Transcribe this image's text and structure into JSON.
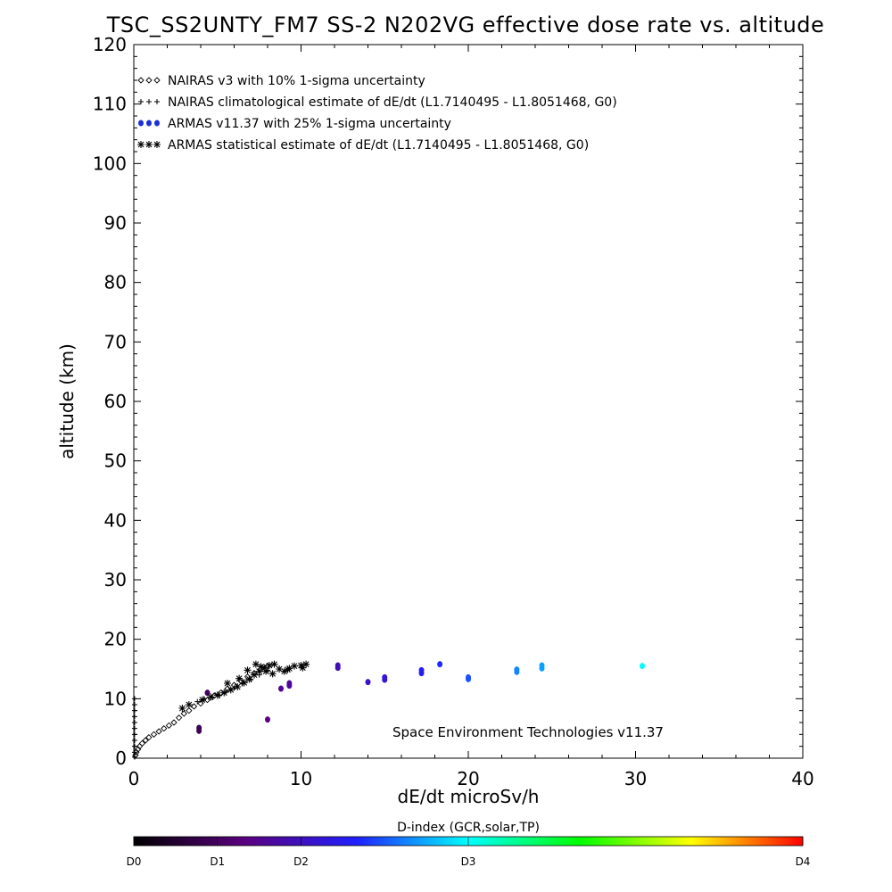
{
  "chart_data": {
    "type": "scatter",
    "title": "TSC_SS2UNTY_FM7 SS-2 N202VG effective dose rate vs. altitude",
    "xlabel": "dE/dt microSv/h",
    "ylabel": "altitude (km)",
    "xlim": [
      0,
      40
    ],
    "ylim": [
      0,
      120
    ],
    "x_ticks": [
      "0",
      "10",
      "20",
      "30",
      "40"
    ],
    "y_ticks": [
      "0",
      "10",
      "20",
      "30",
      "40",
      "50",
      "60",
      "70",
      "80",
      "90",
      "100",
      "110",
      "120"
    ],
    "legend_position": "top-left",
    "legend": [
      {
        "symbol": "◇◇◇",
        "label": "NAIRAS v3 with 10% 1-sigma uncertainty"
      },
      {
        "symbol": "+++",
        "label": "NAIRAS climatological estimate of dE/dt (L1.7140495 - L1.8051468, G0)"
      },
      {
        "symbol": "●●●",
        "label": "ARMAS v11.37 with 25% 1-sigma uncertainty",
        "color": "#1a2fd6"
      },
      {
        "symbol": "✱✱✱",
        "label": "ARMAS statistical estimate of dE/dt (L1.7140495 - L1.8051468, G0)"
      }
    ],
    "annotation": "Space Environment Technologies v11.37",
    "colorbar": {
      "title": "D-index (GCR,solar,TP)",
      "ticks": [
        {
          "label": "D0",
          "value": 0
        },
        {
          "label": "D1",
          "value": 0.125
        },
        {
          "label": "D2",
          "value": 0.25
        },
        {
          "label": "D3",
          "value": 0.5
        },
        {
          "label": "D4",
          "value": 1.0
        }
      ],
      "stops": [
        "#000000",
        "#5a0080",
        "#2020ff",
        "#00ffff",
        "#00ff00",
        "#ffff00",
        "#ff0000"
      ]
    },
    "series": [
      {
        "name": "NAIRAS v3 with 10% 1-sigma uncertainty",
        "marker": "diamond",
        "color": "#000000",
        "points": [
          [
            0.1,
            0.5
          ],
          [
            0.15,
            1.0
          ],
          [
            0.25,
            1.5
          ],
          [
            0.35,
            2.0
          ],
          [
            0.5,
            2.5
          ],
          [
            0.7,
            3.0
          ],
          [
            0.9,
            3.5
          ],
          [
            1.2,
            4.0
          ],
          [
            1.5,
            4.5
          ],
          [
            1.8,
            5.0
          ],
          [
            2.1,
            5.5
          ],
          [
            2.4,
            6.0
          ],
          [
            2.7,
            6.8
          ],
          [
            3.0,
            7.5
          ],
          [
            3.3,
            8.0
          ],
          [
            3.6,
            8.7
          ],
          [
            4.0,
            9.2
          ],
          [
            4.4,
            9.8
          ],
          [
            4.8,
            10.5
          ],
          [
            5.2,
            11.0
          ],
          [
            5.6,
            11.7
          ],
          [
            6.0,
            12.3
          ],
          [
            6.4,
            13.0
          ],
          [
            6.8,
            13.7
          ],
          [
            7.2,
            14.3
          ],
          [
            7.6,
            15.0
          ],
          [
            8.0,
            15.5
          ]
        ]
      },
      {
        "name": "NAIRAS climatological estimate of dE/dt (L1.7140495 - L1.8051468, G0)",
        "marker": "plus",
        "color": "#000000",
        "points": [
          [
            0.05,
            0.2
          ],
          [
            0.05,
            1.0
          ],
          [
            0.05,
            2.0
          ],
          [
            0.05,
            3.0
          ],
          [
            0.05,
            4.0
          ],
          [
            0.05,
            5.0
          ],
          [
            0.05,
            6.0
          ],
          [
            0.05,
            7.0
          ],
          [
            0.05,
            8.0
          ],
          [
            0.05,
            9.0
          ],
          [
            0.05,
            10.0
          ],
          [
            3.8,
            9.5
          ],
          [
            4.2,
            10.0
          ],
          [
            4.7,
            10.2
          ],
          [
            5.1,
            10.5
          ],
          [
            5.5,
            11.2
          ],
          [
            6.0,
            11.8
          ],
          [
            6.5,
            12.5
          ],
          [
            7.0,
            13.2
          ],
          [
            7.5,
            14.0
          ],
          [
            8.0,
            14.8
          ]
        ]
      },
      {
        "name": "ARMAS v11.37 with 25% 1-sigma uncertainty",
        "marker": "circle",
        "points": [
          [
            3.9,
            4.6,
            0.11
          ],
          [
            3.9,
            5.1,
            0.11
          ],
          [
            4.4,
            11.0,
            0.12
          ],
          [
            8.0,
            6.5,
            0.17
          ],
          [
            8.8,
            11.7,
            0.19
          ],
          [
            9.3,
            12.2,
            0.2
          ],
          [
            9.3,
            12.6,
            0.2
          ],
          [
            12.2,
            15.2,
            0.24
          ],
          [
            12.2,
            15.6,
            0.24
          ],
          [
            14.0,
            12.8,
            0.26
          ],
          [
            15.0,
            13.2,
            0.28
          ],
          [
            15.0,
            13.6,
            0.28
          ],
          [
            17.2,
            14.3,
            0.32
          ],
          [
            17.2,
            14.8,
            0.32
          ],
          [
            18.3,
            15.8,
            0.34
          ],
          [
            20.0,
            13.3,
            0.37
          ],
          [
            20.0,
            13.6,
            0.37
          ],
          [
            22.9,
            14.5,
            0.41
          ],
          [
            22.9,
            14.9,
            0.41
          ],
          [
            24.4,
            15.1,
            0.43
          ],
          [
            24.4,
            15.6,
            0.43
          ],
          [
            30.4,
            15.5,
            0.5
          ]
        ]
      },
      {
        "name": "ARMAS statistical estimate of dE/dt (L1.7140495 - L1.8051468, G0)",
        "marker": "asterisk",
        "color": "#000000",
        "points": [
          [
            2.9,
            8.4
          ],
          [
            3.3,
            9.0
          ],
          [
            4.1,
            9.8
          ],
          [
            4.6,
            10.3
          ],
          [
            5.0,
            10.6
          ],
          [
            5.4,
            11.0
          ],
          [
            5.8,
            11.5
          ],
          [
            6.2,
            12.0
          ],
          [
            6.6,
            12.7
          ],
          [
            6.9,
            13.3
          ],
          [
            7.2,
            14.0
          ],
          [
            7.5,
            14.6
          ],
          [
            7.8,
            15.2
          ],
          [
            8.1,
            15.6
          ],
          [
            8.4,
            15.8
          ],
          [
            8.7,
            15.0
          ],
          [
            9.0,
            14.6
          ],
          [
            9.3,
            15.1
          ],
          [
            9.6,
            15.5
          ],
          [
            10.0,
            15.6
          ],
          [
            10.3,
            15.8
          ],
          [
            7.3,
            15.8
          ],
          [
            7.6,
            15.4
          ],
          [
            6.8,
            14.8
          ],
          [
            7.9,
            14.6
          ],
          [
            8.3,
            14.2
          ],
          [
            9.2,
            14.9
          ],
          [
            10.1,
            15.2
          ],
          [
            6.3,
            13.4
          ],
          [
            5.6,
            12.6
          ]
        ]
      }
    ]
  }
}
